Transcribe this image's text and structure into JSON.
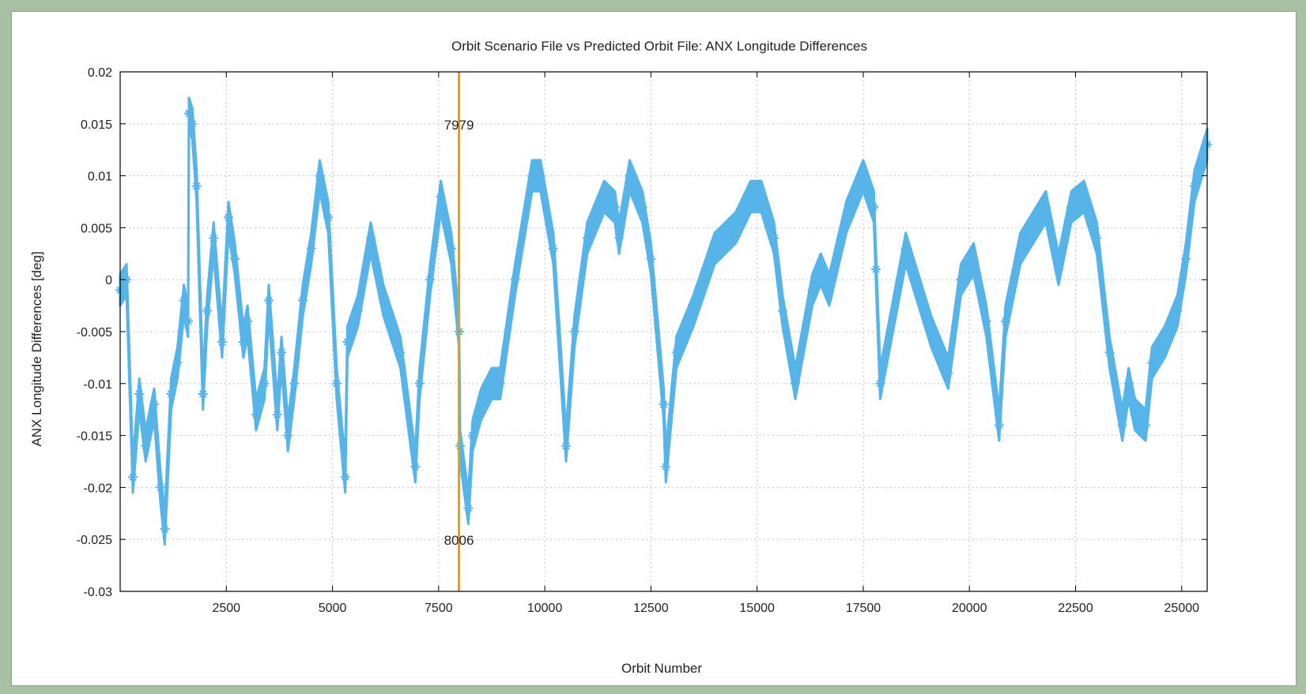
{
  "chart_data": {
    "type": "scatter",
    "title": "Orbit Scenario File vs Predicted Orbit File: ANX Longitude Differences",
    "xlabel": "Orbit Number",
    "ylabel": "ANX Longitude Differences [deg]",
    "xlim": [
      0,
      25600
    ],
    "ylim": [
      -0.03,
      0.02
    ],
    "xticks": [
      2500,
      5000,
      7500,
      10000,
      12500,
      15000,
      17500,
      20000,
      22500,
      25000
    ],
    "yticks": [
      0.02,
      0.015,
      0.01,
      0.005,
      0,
      -0.005,
      -0.01,
      -0.015,
      -0.02,
      -0.025,
      -0.03
    ],
    "ytick_labels": [
      "0.02",
      "0.015",
      "0.01",
      "0.005",
      "0",
      "-0.005",
      "-0.01",
      "-0.015",
      "-0.02",
      "-0.025",
      "-0.03"
    ],
    "grid": true,
    "series": [
      {
        "color": "#56b4e9",
        "marker": "asterisk",
        "band_width": 0.003,
        "x": [
          0,
          150,
          300,
          450,
          600,
          800,
          950,
          1050,
          1200,
          1350,
          1500,
          1600,
          1620,
          1700,
          1800,
          1950,
          2050,
          2200,
          2400,
          2550,
          2700,
          2900,
          3000,
          3200,
          3400,
          3500,
          3700,
          3800,
          3950,
          4100,
          4300,
          4500,
          4700,
          4900,
          5100,
          5300,
          5350,
          5600,
          5900,
          6200,
          6600,
          6950,
          7050,
          7300,
          7550,
          7800,
          7980,
          8006,
          8200,
          8300,
          8500,
          8750,
          8950,
          9300,
          9700,
          9900,
          10200,
          10500,
          10700,
          11000,
          11400,
          11650,
          11750,
          12000,
          12300,
          12500,
          12800,
          12850,
          13100,
          13500,
          14000,
          14500,
          14850,
          15100,
          15400,
          15600,
          15900,
          16300,
          16500,
          16700,
          17100,
          17500,
          17750,
          17800,
          17900,
          18500,
          19100,
          19500,
          19800,
          20100,
          20400,
          20700,
          20850,
          21200,
          21800,
          22100,
          22400,
          22700,
          23000,
          23300,
          23600,
          23750,
          23900,
          24150,
          24300,
          24600,
          24900,
          25100,
          25300,
          25600
        ],
        "y": [
          -0.001,
          0.0,
          -0.019,
          -0.011,
          -0.016,
          -0.012,
          -0.02,
          -0.024,
          -0.011,
          -0.008,
          -0.002,
          -0.004,
          0.016,
          0.015,
          0.009,
          -0.011,
          -0.003,
          0.004,
          -0.006,
          0.006,
          0.002,
          -0.006,
          -0.004,
          -0.013,
          -0.01,
          -0.002,
          -0.013,
          -0.007,
          -0.015,
          -0.01,
          -0.002,
          0.003,
          0.01,
          0.006,
          -0.01,
          -0.019,
          -0.006,
          -0.003,
          0.004,
          -0.002,
          -0.007,
          -0.018,
          -0.01,
          0.0,
          0.008,
          0.003,
          -0.005,
          -0.016,
          -0.022,
          -0.015,
          -0.012,
          -0.01,
          -0.01,
          0.0,
          0.01,
          0.01,
          0.003,
          -0.016,
          -0.005,
          0.004,
          0.008,
          0.007,
          0.004,
          0.01,
          0.007,
          0.002,
          -0.012,
          -0.018,
          -0.007,
          -0.003,
          0.003,
          0.005,
          0.008,
          0.008,
          0.004,
          -0.003,
          -0.01,
          -0.001,
          0.001,
          -0.001,
          0.006,
          0.01,
          0.007,
          0.001,
          -0.01,
          0.003,
          -0.005,
          -0.009,
          0.0,
          0.002,
          -0.004,
          -0.014,
          -0.004,
          0.003,
          0.007,
          0.001,
          0.007,
          0.008,
          0.004,
          -0.007,
          -0.014,
          -0.01,
          -0.013,
          -0.014,
          -0.008,
          -0.006,
          -0.003,
          0.002,
          0.009,
          0.013
        ]
      }
    ],
    "markers": [
      {
        "x": 7979,
        "label_top": "7979",
        "label_bottom": "8006",
        "color": "#e69f00"
      }
    ]
  }
}
